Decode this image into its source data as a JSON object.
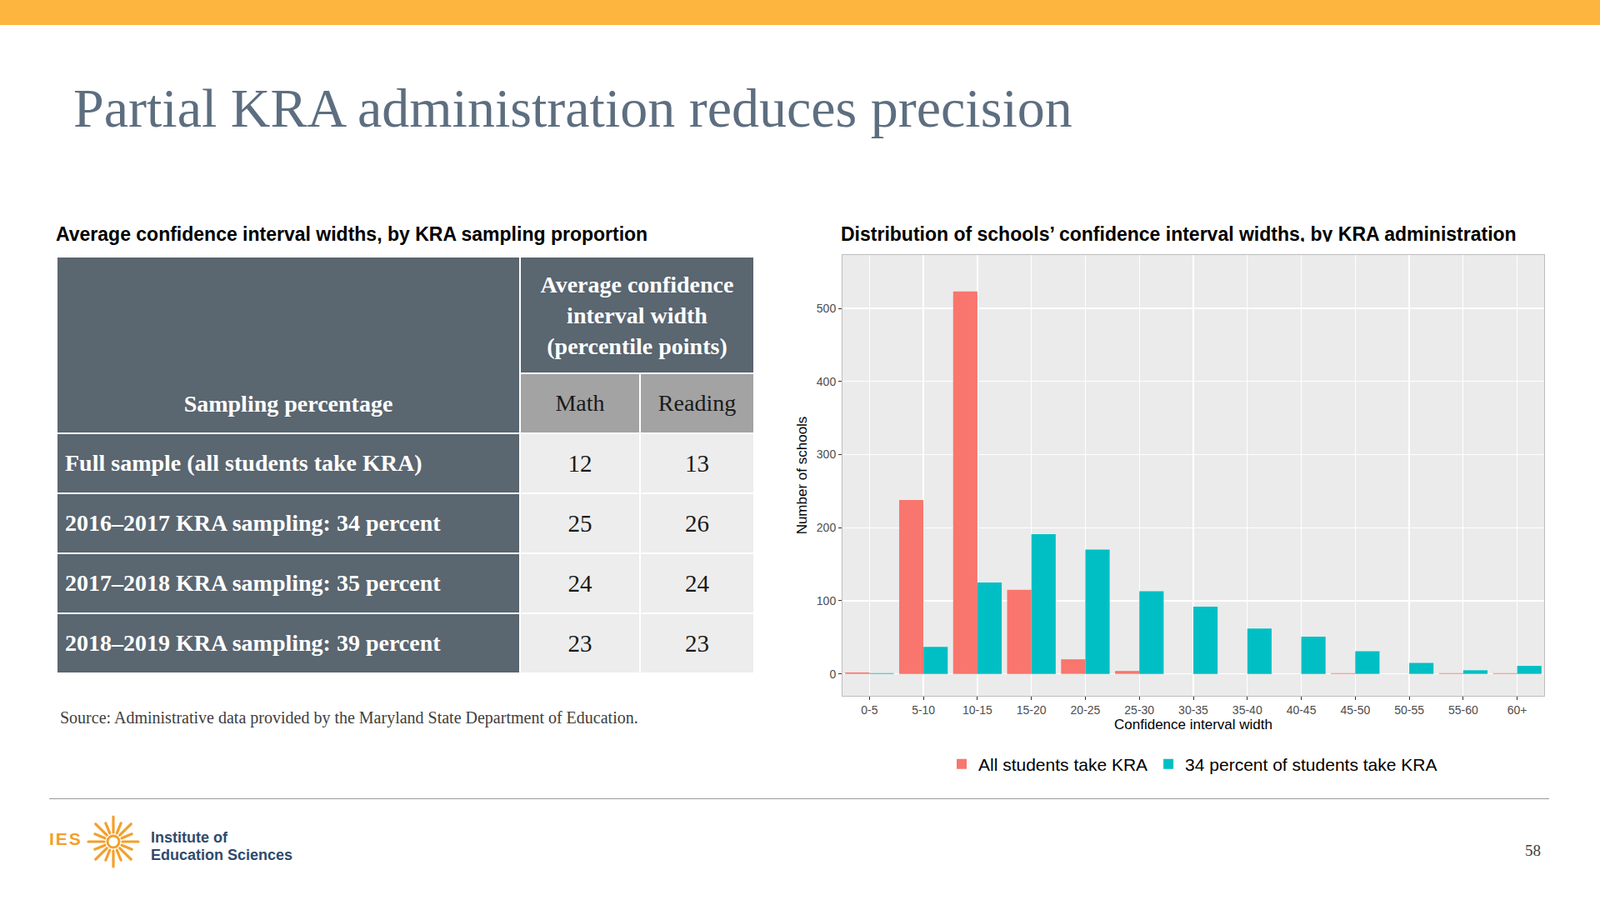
{
  "slide": {
    "title": "Partial KRA administration reduces precision",
    "page_number": 58,
    "footer": {
      "logo_text": "IES",
      "organization": [
        "Institute of",
        "Education Sciences"
      ]
    }
  },
  "table": {
    "caption": "Average confidence interval widths, by KRA sampling proportion",
    "header": {
      "row_label": "Sampling percentage",
      "group": [
        "Average confidence",
        "interval width",
        "(percentile points)"
      ],
      "columns": [
        "Math",
        "Reading"
      ]
    },
    "rows": [
      {
        "label": "Full sample (all students take KRA)",
        "values": [
          12,
          13
        ]
      },
      {
        "label": "2016–2017 KRA sampling: 34 percent",
        "values": [
          25,
          26
        ]
      },
      {
        "label": "2017–2018 KRA sampling: 35 percent",
        "values": [
          24,
          24
        ]
      },
      {
        "label": "2018–2019 KRA sampling: 39 percent",
        "values": [
          23,
          23
        ]
      }
    ],
    "source": "Source: Administrative data provided by the Maryland State Department of Education."
  },
  "chart_data": {
    "type": "bar",
    "title": "Distribution of schools’ confidence interval widths, by KRA administration",
    "x_label": "Confidence interval width",
    "y_label": "Number of schools",
    "categories": [
      "0-5",
      "5-10",
      "10-15",
      "15-20",
      "20-25",
      "25-30",
      "30-35",
      "35-40",
      "40-45",
      "45-50",
      "50-55",
      "55-60",
      "60+"
    ],
    "series": [
      {
        "name": "All students take KRA",
        "color": "#F8766D",
        "values": [
          2,
          238,
          523,
          115,
          20,
          4,
          0,
          0,
          0,
          1,
          0,
          1,
          1
        ]
      },
      {
        "name": "34 percent of students take KRA",
        "color": "#00BFC4",
        "values": [
          1,
          37,
          125,
          191,
          170,
          113,
          92,
          62,
          51,
          31,
          15,
          5,
          11
        ]
      }
    ],
    "ylim": [
      -30,
      573
    ],
    "yticks": [
      0,
      100,
      200,
      300,
      400,
      500
    ],
    "grid": true,
    "legend": "bottom"
  }
}
